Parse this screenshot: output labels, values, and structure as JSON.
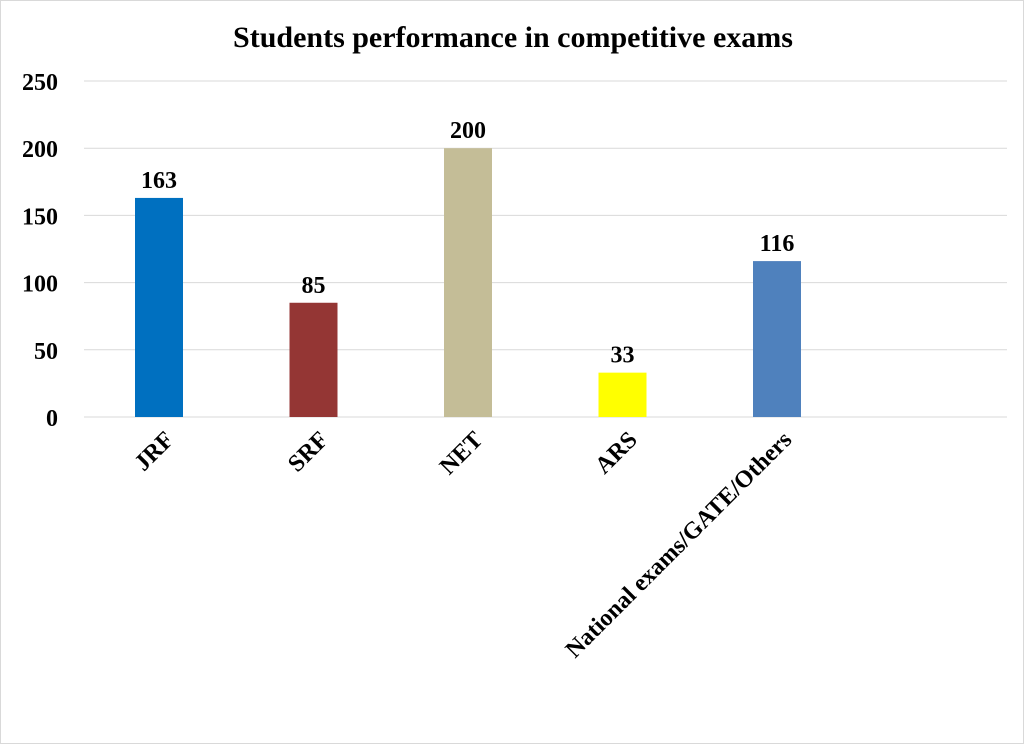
{
  "chart_data": {
    "type": "bar",
    "title": "Students performance in competitive exams",
    "xlabel": "",
    "ylabel": "",
    "categories": [
      "JRF",
      "SRF",
      "NET",
      "ARS",
      "National exams/GATE/Others"
    ],
    "values": [
      163,
      85,
      200,
      33,
      116
    ],
    "data_labels": [
      "163",
      "85",
      "200",
      "33",
      "116"
    ],
    "bar_colors": [
      "#0070c0",
      "#943634",
      "#c4bd97",
      "#ffff00",
      "#4f81bd"
    ],
    "ylim": [
      0,
      250
    ],
    "yticks": [
      0,
      50,
      100,
      150,
      200,
      250
    ],
    "ytick_labels": [
      "0",
      "50",
      "100",
      "150",
      "200",
      "250"
    ],
    "grid": true,
    "legend": "none"
  }
}
